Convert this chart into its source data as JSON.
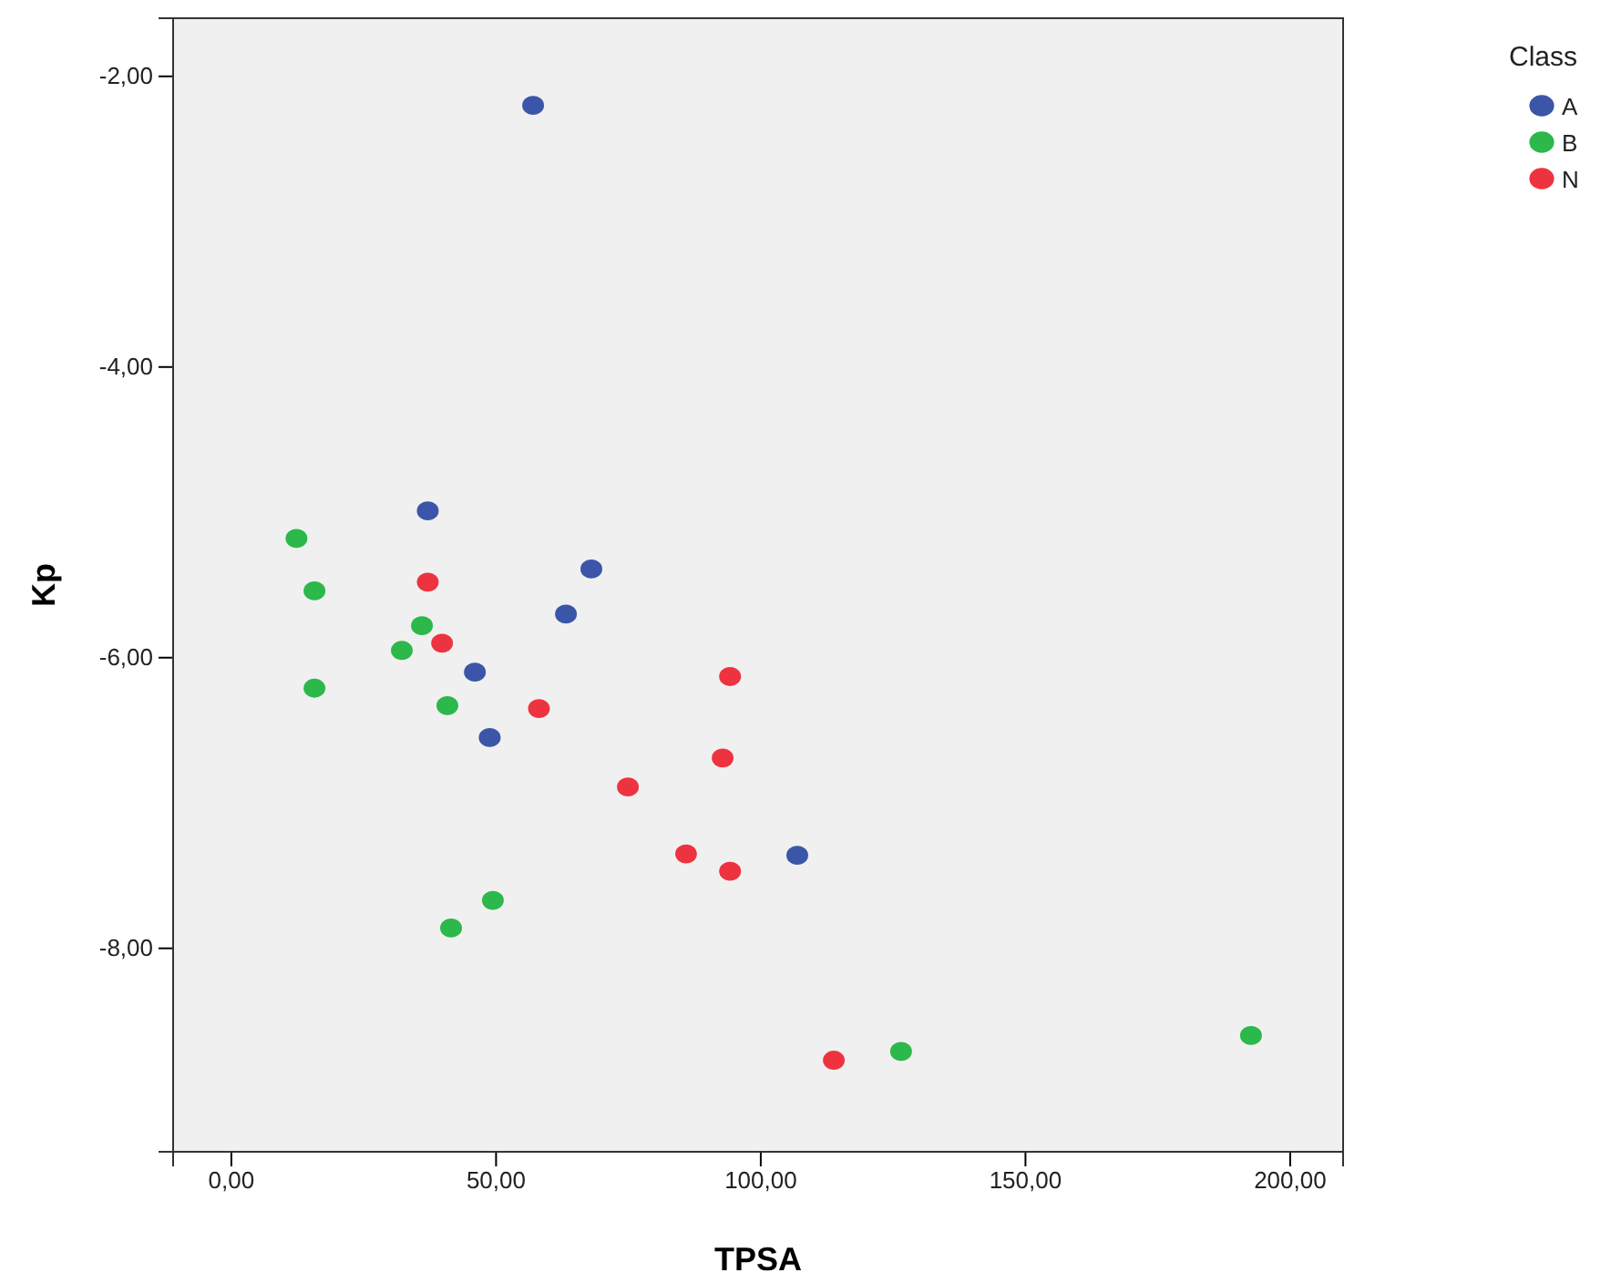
{
  "chart_data": {
    "type": "scatter",
    "xlabel": "TPSA",
    "ylabel": "Kp",
    "legend_title": "Class",
    "legend": "top right",
    "marker": "circle",
    "grid": false,
    "xlim": [
      -11,
      210
    ],
    "xticks": [
      {
        "value": 0,
        "label": "0,00"
      },
      {
        "value": 50,
        "label": "50,00"
      },
      {
        "value": 100,
        "label": "100,00"
      },
      {
        "value": 150,
        "label": "150,00"
      },
      {
        "value": 200,
        "label": "200,00"
      }
    ],
    "ylim": [
      -9.4,
      -1.6
    ],
    "yticks": [
      {
        "value": -8,
        "label": "-8,00"
      },
      {
        "value": -6,
        "label": "-6,00"
      },
      {
        "value": -4,
        "label": "-4,00"
      },
      {
        "value": -2,
        "label": "-2,00"
      }
    ],
    "series": [
      {
        "name": "A",
        "color": "#3b55a8",
        "x": [
          57.0,
          37.1,
          68.0,
          63.2,
          46.0,
          48.8,
          106.9
        ],
        "values": [
          -2.2,
          -4.99,
          -5.39,
          -5.7,
          -6.1,
          -6.55,
          -7.36
        ]
      },
      {
        "name": "B",
        "color": "#2cb84a",
        "x": [
          12.3,
          15.7,
          36.0,
          32.2,
          15.7,
          40.8,
          49.4,
          41.5,
          126.5,
          192.6
        ],
        "values": [
          -5.18,
          -5.54,
          -5.78,
          -5.95,
          -6.21,
          -6.33,
          -7.67,
          -7.86,
          -8.71,
          -8.6
        ]
      },
      {
        "name": "N",
        "color": "#ee3340",
        "x": [
          37.1,
          39.8,
          58.1,
          94.2,
          92.8,
          74.9,
          85.9,
          94.2,
          113.8
        ],
        "values": [
          -5.48,
          -5.9,
          -6.35,
          -6.13,
          -6.69,
          -6.89,
          -7.35,
          -7.47,
          -8.77
        ]
      }
    ]
  }
}
